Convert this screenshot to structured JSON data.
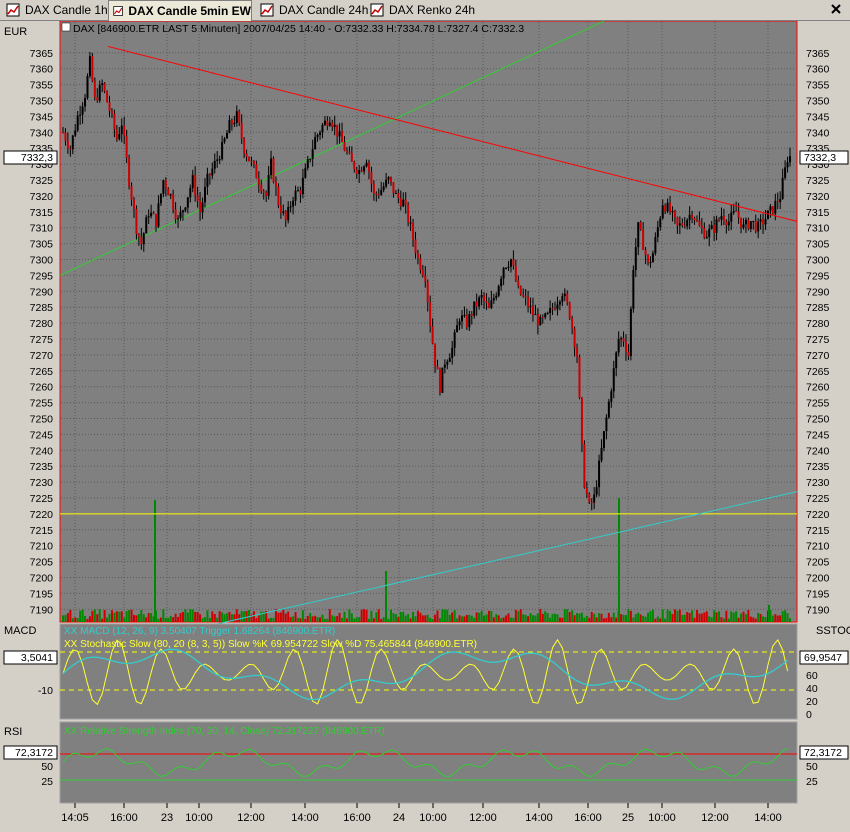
{
  "tabs": [
    {
      "label": "DAX Candle 1h",
      "icon": "chart-icon",
      "active": false
    },
    {
      "label": "DAX Candle 5min EW",
      "icon": "chart-icon",
      "active": true
    },
    {
      "label": "DAX Candle 24h",
      "icon": "chart-icon",
      "active": false
    },
    {
      "label": "DAX Renko 24h",
      "icon": "chart-icon",
      "active": false
    }
  ],
  "price_panel": {
    "currency": "EUR",
    "header": "DAX [846900.ETR LAST 5 Minuten] 2007/04/25 14:40 - O:7332.33 H:7334.78 L:7327.4 C:7332.3",
    "last_price": "7332,3",
    "y_ticks": [
      "7365",
      "7360",
      "7355",
      "7350",
      "7345",
      "7340",
      "7335",
      "7330",
      "7325",
      "7320",
      "7315",
      "7310",
      "7305",
      "7300",
      "7295",
      "7290",
      "7285",
      "7280",
      "7275",
      "7270",
      "7265",
      "7260",
      "7255",
      "7250",
      "7245",
      "7240",
      "7235",
      "7230",
      "7225",
      "7220",
      "7215",
      "7210",
      "7205",
      "7200",
      "7195",
      "7190"
    ],
    "candle_up_color": "#000000",
    "candle_down_color": "#cc0000"
  },
  "macd_panel": {
    "label_left": "MACD",
    "label_right": "SSTOC",
    "legend_macd": "XX MACD (12, 26, 9) 3.50407 Trigger 1.68264 (846900.ETR)",
    "legend_stoch": "XX Stochastic Slow (80, 20 (8, 3, 5)) Slow %K 69.954722 Slow %D 75.465844 (846900.ETR)",
    "left_value": "3,5041",
    "left_ticks": [
      "-10"
    ],
    "right_value": "69,9547",
    "right_ticks": [
      "60",
      "40",
      "20",
      "0"
    ]
  },
  "rsi_panel": {
    "label_left": "RSI",
    "legend": "XX Relative Strength Index (70, 30, 14, Close) 72.317227 (846900.ETR)",
    "left_value": "72,3172",
    "left_ticks": [
      "50",
      "25"
    ],
    "right_value": "72,3172",
    "right_ticks": [
      "50",
      "25"
    ]
  },
  "time_axis": [
    "14:05",
    "16:00",
    "23",
    "10:00",
    "12:00",
    "14:00",
    "16:00",
    "24",
    "10:00",
    "12:00",
    "14:00",
    "16:00",
    "25",
    "10:00",
    "12:00",
    "14:00"
  ],
  "colors": {
    "plot_bg": "#808080",
    "grid": "#555555",
    "red_trendline": "#ff0000",
    "green_trendline": "#33cc33",
    "cyan_trendline": "#33cccc",
    "support_line": "#ffff00"
  },
  "chart_data": {
    "type": "candlestick",
    "title": "DAX [846900.ETR LAST 5 Minuten] 2007/04/25 14:40 - O:7332.33 H:7334.78 L:7327.4 C:7332.3",
    "ylabel": "EUR",
    "ylim": [
      7186,
      7375
    ],
    "last_close": 7332.3,
    "support_line": 7220,
    "price_path": [
      [
        0,
        7340
      ],
      [
        3,
        7335
      ],
      [
        6,
        7345
      ],
      [
        9,
        7352
      ],
      [
        11,
        7362
      ],
      [
        13,
        7350
      ],
      [
        16,
        7355
      ],
      [
        19,
        7347
      ],
      [
        22,
        7338
      ],
      [
        24,
        7343
      ],
      [
        27,
        7325
      ],
      [
        30,
        7310
      ],
      [
        32,
        7305
      ],
      [
        35,
        7315
      ],
      [
        38,
        7312
      ],
      [
        41,
        7325
      ],
      [
        44,
        7320
      ],
      [
        47,
        7312
      ],
      [
        50,
        7318
      ],
      [
        53,
        7325
      ],
      [
        56,
        7315
      ],
      [
        59,
        7325
      ],
      [
        62,
        7330
      ],
      [
        65,
        7335
      ],
      [
        68,
        7342
      ],
      [
        71,
        7345
      ],
      [
        74,
        7335
      ],
      [
        77,
        7330
      ],
      [
        80,
        7325
      ],
      [
        83,
        7320
      ],
      [
        85,
        7330
      ],
      [
        88,
        7318
      ],
      [
        91,
        7312
      ],
      [
        94,
        7320
      ],
      [
        97,
        7322
      ],
      [
        100,
        7330
      ],
      [
        103,
        7338
      ],
      [
        106,
        7342
      ],
      [
        109,
        7345
      ],
      [
        112,
        7340
      ],
      [
        115,
        7335
      ],
      [
        118,
        7330
      ],
      [
        121,
        7328
      ],
      [
        124,
        7332
      ],
      [
        127,
        7320
      ],
      [
        130,
        7322
      ],
      [
        133,
        7325
      ],
      [
        136,
        7320
      ],
      [
        139,
        7318
      ],
      [
        142,
        7310
      ],
      [
        145,
        7300
      ],
      [
        148,
        7295
      ],
      [
        150,
        7280
      ],
      [
        152,
        7268
      ],
      [
        154,
        7260
      ],
      [
        156,
        7268
      ],
      [
        159,
        7272
      ],
      [
        162,
        7282
      ],
      [
        165,
        7280
      ],
      [
        168,
        7285
      ],
      [
        171,
        7288
      ],
      [
        174,
        7284
      ],
      [
        177,
        7290
      ],
      [
        180,
        7298
      ],
      [
        183,
        7300
      ],
      [
        186,
        7290
      ],
      [
        189,
        7287
      ],
      [
        192,
        7283
      ],
      [
        195,
        7280
      ],
      [
        198,
        7282
      ],
      [
        201,
        7286
      ],
      [
        204,
        7290
      ],
      [
        207,
        7283
      ],
      [
        210,
        7270
      ],
      [
        212,
        7240
      ],
      [
        213,
        7230
      ],
      [
        215,
        7222
      ],
      [
        217,
        7225
      ],
      [
        219,
        7235
      ],
      [
        221,
        7245
      ],
      [
        223,
        7255
      ],
      [
        225,
        7265
      ],
      [
        227,
        7275
      ],
      [
        229,
        7275
      ],
      [
        231,
        7270
      ],
      [
        233,
        7298
      ],
      [
        235,
        7310
      ],
      [
        237,
        7305
      ],
      [
        239,
        7298
      ],
      [
        241,
        7302
      ],
      [
        243,
        7310
      ],
      [
        245,
        7318
      ],
      [
        248,
        7315
      ],
      [
        251,
        7310
      ],
      [
        254,
        7312
      ],
      [
        257,
        7315
      ],
      [
        260,
        7310
      ],
      [
        263,
        7308
      ],
      [
        266,
        7310
      ],
      [
        269,
        7314
      ],
      [
        272,
        7312
      ],
      [
        275,
        7315
      ],
      [
        278,
        7310
      ],
      [
        281,
        7312
      ],
      [
        284,
        7310
      ],
      [
        287,
        7313
      ],
      [
        290,
        7316
      ],
      [
        293,
        7320
      ],
      [
        296,
        7332
      ],
      [
        297,
        7332.3
      ]
    ],
    "volume_spikes": [
      {
        "time": "16:00 (Apr 23)",
        "value": "large"
      },
      {
        "time": "16:00 (Apr 24)",
        "value": "large"
      },
      {
        "time": "16:00 (Apr 25)",
        "value": "large"
      }
    ],
    "trendlines": [
      {
        "name": "red",
        "from": 7367,
        "to": 7312
      },
      {
        "name": "green",
        "from": 7295,
        "to": 7380
      },
      {
        "name": "cyan",
        "from": 7182,
        "to": 7227
      }
    ],
    "indicators": {
      "macd": {
        "value": 3.50407,
        "trigger": 1.68264
      },
      "stochastic": {
        "k": 69.954722,
        "d": 75.465844,
        "upper": 80,
        "lower": 20
      },
      "rsi": {
        "value": 72.317227,
        "upper": 70,
        "lower": 30
      }
    }
  }
}
